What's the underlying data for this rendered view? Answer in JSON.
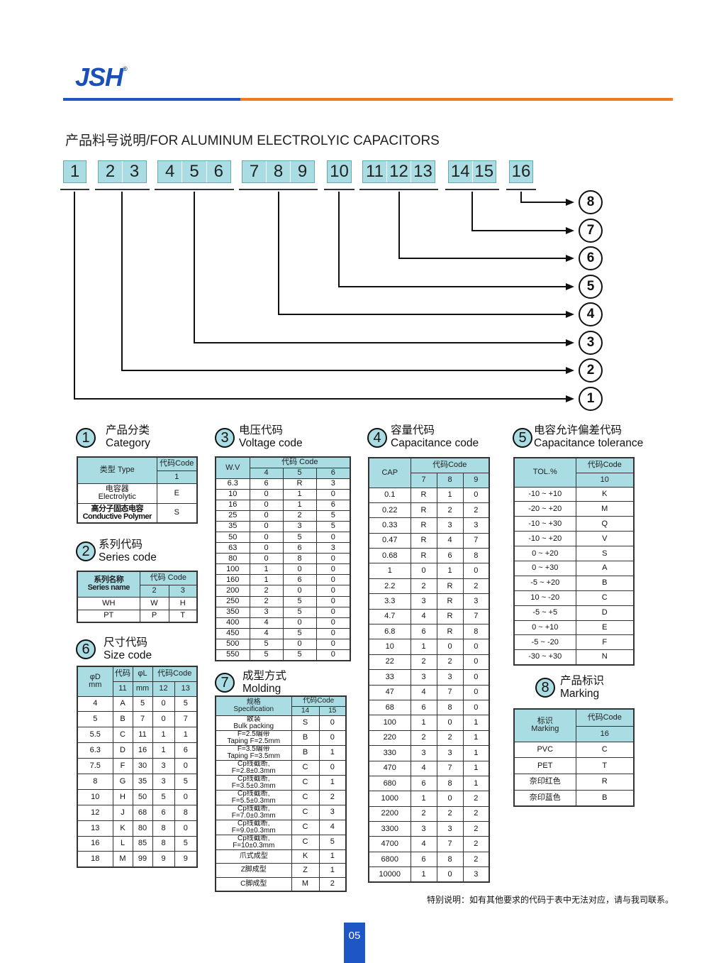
{
  "logo": {
    "text": "JSH",
    "mark": "®"
  },
  "colors": {
    "blue": "#1f56c6",
    "orange": "#f07a1e",
    "header_cyan": "#a9dde3"
  },
  "title": "产品料号说明/FOR ALUMINUM ELECTROLYIC CAPACITORS",
  "code_positions": [
    [
      "1"
    ],
    [
      "2",
      "3"
    ],
    [
      "4",
      "5",
      "6"
    ],
    [
      "7",
      "8",
      "9"
    ],
    [
      "10"
    ],
    [
      "11",
      "12",
      "13"
    ],
    [
      "14",
      "15"
    ],
    [
      "16"
    ]
  ],
  "callouts": [
    "8",
    "7",
    "6",
    "5",
    "4",
    "3",
    "2",
    "1"
  ],
  "sections": {
    "s1": {
      "num": "1",
      "cn": "产品分类",
      "en": "Category",
      "header": [
        [
          "类型   Type",
          "代码Code"
        ],
        [
          "1"
        ]
      ],
      "rows": [
        [
          "电容器\nElectrolytic",
          "E"
        ],
        [
          "高分子固态电容\nConductive Polymer",
          "S"
        ]
      ]
    },
    "s2": {
      "num": "2",
      "cn": "系列代码",
      "en": "Series code",
      "header": [
        [
          "系列名称\nSeries name",
          "代码 Code"
        ],
        [
          "2",
          "3"
        ]
      ],
      "rows": [
        [
          "WH",
          "W",
          "H"
        ],
        [
          "PT",
          "P",
          "T"
        ]
      ]
    },
    "s3": {
      "num": "3",
      "cn": "电压代码",
      "en": "Voltage code",
      "header": [
        [
          "W.V",
          "代码        Code"
        ],
        [
          "4",
          "5",
          "6"
        ]
      ],
      "rows": [
        [
          "6.3",
          "6",
          "R",
          "3"
        ],
        [
          "10",
          "0",
          "1",
          "0"
        ],
        [
          "16",
          "0",
          "1",
          "6"
        ],
        [
          "25",
          "0",
          "2",
          "5"
        ],
        [
          "35",
          "0",
          "3",
          "5"
        ],
        [
          "50",
          "0",
          "5",
          "0"
        ],
        [
          "63",
          "0",
          "6",
          "3"
        ],
        [
          "80",
          "0",
          "8",
          "0"
        ],
        [
          "100",
          "1",
          "0",
          "0"
        ],
        [
          "160",
          "1",
          "6",
          "0"
        ],
        [
          "200",
          "2",
          "0",
          "0"
        ],
        [
          "250",
          "2",
          "5",
          "0"
        ],
        [
          "350",
          "3",
          "5",
          "0"
        ],
        [
          "400",
          "4",
          "0",
          "0"
        ],
        [
          "450",
          "4",
          "5",
          "0"
        ],
        [
          "500",
          "5",
          "0",
          "0"
        ],
        [
          "550",
          "5",
          "5",
          "0"
        ]
      ]
    },
    "s4": {
      "num": "4",
      "cn": "容量代码",
      "en": "Capacitance code",
      "header": [
        [
          "CAP",
          "代码Code"
        ],
        [
          "7",
          "8",
          "9"
        ]
      ],
      "rows": [
        [
          "0.1",
          "R",
          "1",
          "0"
        ],
        [
          "0.22",
          "R",
          "2",
          "2"
        ],
        [
          "0.33",
          "R",
          "3",
          "3"
        ],
        [
          "0.47",
          "R",
          "4",
          "7"
        ],
        [
          "0.68",
          "R",
          "6",
          "8"
        ],
        [
          "1",
          "0",
          "1",
          "0"
        ],
        [
          "2.2",
          "2",
          "R",
          "2"
        ],
        [
          "3.3",
          "3",
          "R",
          "3"
        ],
        [
          "4.7",
          "4",
          "R",
          "7"
        ],
        [
          "6.8",
          "6",
          "R",
          "8"
        ],
        [
          "10",
          "1",
          "0",
          "0"
        ],
        [
          "22",
          "2",
          "2",
          "0"
        ],
        [
          "33",
          "3",
          "3",
          "0"
        ],
        [
          "47",
          "4",
          "7",
          "0"
        ],
        [
          "68",
          "6",
          "8",
          "0"
        ],
        [
          "100",
          "1",
          "0",
          "1"
        ],
        [
          "220",
          "2",
          "2",
          "1"
        ],
        [
          "330",
          "3",
          "3",
          "1"
        ],
        [
          "470",
          "4",
          "7",
          "1"
        ],
        [
          "680",
          "6",
          "8",
          "1"
        ],
        [
          "1000",
          "1",
          "0",
          "2"
        ],
        [
          "2200",
          "2",
          "2",
          "2"
        ],
        [
          "3300",
          "3",
          "3",
          "2"
        ],
        [
          "4700",
          "4",
          "7",
          "2"
        ],
        [
          "6800",
          "6",
          "8",
          "2"
        ],
        [
          "10000",
          "1",
          "0",
          "3"
        ]
      ]
    },
    "s5": {
      "num": "5",
      "cn": "电容允许偏差代码",
      "en": "Capacitance tolerance",
      "header": [
        [
          "TOL.%",
          "代码Code"
        ],
        [
          "10"
        ]
      ],
      "rows": [
        [
          "-10 ~ +10",
          "K"
        ],
        [
          "-20 ~ +20",
          "M"
        ],
        [
          "-10 ~ +30",
          "Q"
        ],
        [
          "-10 ~ +20",
          "V"
        ],
        [
          "0 ~ +20",
          "S"
        ],
        [
          "0 ~ +30",
          "A"
        ],
        [
          "-5 ~ +20",
          "B"
        ],
        [
          "10 ~ -20",
          "C"
        ],
        [
          "-5 ~ +5",
          "D"
        ],
        [
          "0 ~ +10",
          "E"
        ],
        [
          "-5 ~ -20",
          "F"
        ],
        [
          "-30 ~ +30",
          "N"
        ]
      ]
    },
    "s6": {
      "num": "6",
      "cn": "尺寸代码",
      "en": "Size code",
      "header": [
        [
          "φD\nmm",
          "代码",
          "φL",
          "代码Code"
        ],
        [
          "11",
          "mm",
          "12",
          "13"
        ]
      ],
      "rows": [
        [
          "4",
          "A",
          "5",
          "0",
          "5"
        ],
        [
          "5",
          "B",
          "7",
          "0",
          "7"
        ],
        [
          "5.5",
          "C",
          "11",
          "1",
          "1"
        ],
        [
          "6.3",
          "D",
          "16",
          "1",
          "6"
        ],
        [
          "7.5",
          "F",
          "30",
          "3",
          "0"
        ],
        [
          "8",
          "G",
          "35",
          "3",
          "5"
        ],
        [
          "10",
          "H",
          "50",
          "5",
          "0"
        ],
        [
          "12",
          "J",
          "68",
          "6",
          "8"
        ],
        [
          "13",
          "K",
          "80",
          "8",
          "0"
        ],
        [
          "16",
          "L",
          "85",
          "8",
          "5"
        ],
        [
          "18",
          "M",
          "99",
          "9",
          "9"
        ]
      ]
    },
    "s7": {
      "num": "7",
      "cn": "成型方式",
      "en": "Molding",
      "header": [
        [
          "规格\nSpecification",
          "代码Code"
        ],
        [
          "14",
          "15"
        ]
      ],
      "rows": [
        [
          "散装\nBulk packing",
          "S",
          "0"
        ],
        [
          "F=2.5编带\nTaping F=2.5mm",
          "B",
          "0"
        ],
        [
          "F=3.5编带\nTaping F=3.5mm",
          "B",
          "1"
        ],
        [
          "Cp线截断,\nF=2.8±0.3mm",
          "C",
          "0"
        ],
        [
          "Cp线截断,\nF=3.5±0.3mm",
          "C",
          "1"
        ],
        [
          "Cp线截断,\nF=5.5±0.3mm",
          "C",
          "2"
        ],
        [
          "Cp线截断,\nF=7.0±0.3mm",
          "C",
          "3"
        ],
        [
          "Cp线截断,\nF=9.0±0.3mm",
          "C",
          "4"
        ],
        [
          "Cp线截断,\nF=10±0.3mm",
          "C",
          "5"
        ],
        [
          "爪式成型",
          "K",
          "1"
        ],
        [
          "Z脚成型",
          "Z",
          "1"
        ],
        [
          "C脚成型",
          "M",
          "2"
        ]
      ]
    },
    "s8": {
      "num": "8",
      "cn": "产品标识",
      "en": "Marking",
      "header": [
        [
          "标识\nMarking",
          "代码Code"
        ],
        [
          "16"
        ]
      ],
      "rows": [
        [
          "PVC",
          "C"
        ],
        [
          "PET",
          "T"
        ],
        [
          "奈印红色",
          "R"
        ],
        [
          "奈印蓝色",
          "B"
        ]
      ]
    }
  },
  "footnote": "特别说明：如有其他要求的代码于表中无法对应，请与我司联系。",
  "page_number": "05"
}
